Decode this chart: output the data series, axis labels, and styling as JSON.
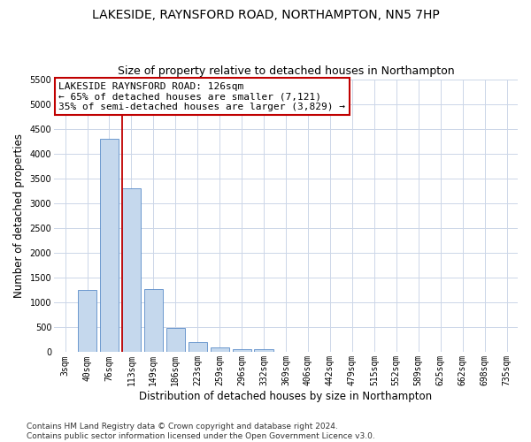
{
  "title": "LAKESIDE, RAYNSFORD ROAD, NORTHAMPTON, NN5 7HP",
  "subtitle": "Size of property relative to detached houses in Northampton",
  "xlabel": "Distribution of detached houses by size in Northampton",
  "ylabel": "Number of detached properties",
  "categories": [
    "3sqm",
    "40sqm",
    "76sqm",
    "113sqm",
    "149sqm",
    "186sqm",
    "223sqm",
    "259sqm",
    "296sqm",
    "332sqm",
    "369sqm",
    "406sqm",
    "442sqm",
    "479sqm",
    "515sqm",
    "552sqm",
    "589sqm",
    "625sqm",
    "662sqm",
    "698sqm",
    "735sqm"
  ],
  "values": [
    0,
    1260,
    4300,
    3300,
    1270,
    480,
    210,
    100,
    65,
    60,
    0,
    0,
    0,
    0,
    0,
    0,
    0,
    0,
    0,
    0,
    0
  ],
  "bar_color": "#c5d8ed",
  "bar_edge_color": "#5b8cc8",
  "vline_color": "#c00000",
  "annotation_text": "LAKESIDE RAYNSFORD ROAD: 126sqm\n← 65% of detached houses are smaller (7,121)\n35% of semi-detached houses are larger (3,829) →",
  "annotation_box_color": "#ffffff",
  "annotation_box_edge": "#c00000",
  "ylim": [
    0,
    5500
  ],
  "yticks": [
    0,
    500,
    1000,
    1500,
    2000,
    2500,
    3000,
    3500,
    4000,
    4500,
    5000,
    5500
  ],
  "footer": "Contains HM Land Registry data © Crown copyright and database right 2024.\nContains public sector information licensed under the Open Government Licence v3.0.",
  "bg_color": "#ffffff",
  "grid_color": "#ccd6e8",
  "title_fontsize": 10,
  "subtitle_fontsize": 9,
  "axis_label_fontsize": 8.5,
  "tick_fontsize": 7,
  "annotation_fontsize": 8,
  "footer_fontsize": 6.5
}
